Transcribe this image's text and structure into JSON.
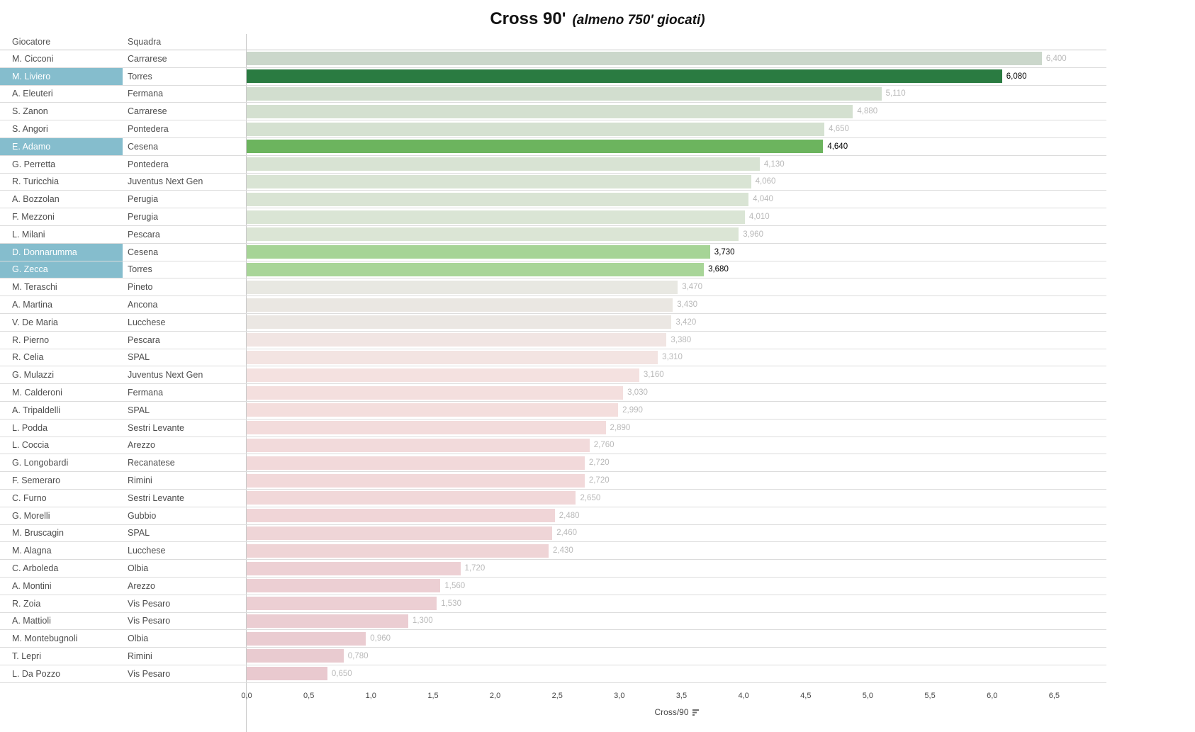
{
  "title": {
    "main": "Cross 90'",
    "subtitle": "(almeno 750' giocati)"
  },
  "columns": {
    "player": "Giocatore",
    "team": "Squadra"
  },
  "colors": {
    "highlight_row_blue": "#85bdcd",
    "highlight_text": "#ffffff",
    "value_label_gray": "#b9b9b9",
    "value_label_highlight": "#000000",
    "grid_line": "#dcdcdc",
    "axis_line": "#c9c9c9",
    "dark_green": "#2a7b41",
    "medium_green": "#6cb45e",
    "light_green": "#a6d496",
    "pale_pink": "#e9c9cf"
  },
  "chart_data": {
    "type": "bar",
    "orientation": "horizontal",
    "title": "Cross 90' (almeno 750' giocati)",
    "xlabel": "Cross/90",
    "xlim": [
      0,
      6.92
    ],
    "pane_max": 6.92,
    "grid": false,
    "ticks": [
      "0,0",
      "0,5",
      "1,0",
      "1,5",
      "2,0",
      "2,5",
      "3,0",
      "3,5",
      "4,0",
      "4,5",
      "5,0",
      "5,5",
      "6,0",
      "6,5"
    ],
    "rows": [
      {
        "player": "M. Cicconi",
        "team": "Carrarese",
        "value": 6.4,
        "value_label": "6,400",
        "color": "#cbd7cb",
        "highlighted": false
      },
      {
        "player": "M. Liviero",
        "team": "Torres",
        "value": 6.08,
        "value_label": "6,080",
        "color": "#2a7b41",
        "highlighted": true
      },
      {
        "player": "A. Eleuteri",
        "team": "Fermana",
        "value": 5.11,
        "value_label": "5,110",
        "color": "#d2decf",
        "highlighted": false
      },
      {
        "player": "S. Zanon",
        "team": "Carrarese",
        "value": 4.88,
        "value_label": "4,880",
        "color": "#d4e0d0",
        "highlighted": false
      },
      {
        "player": "S. Angori",
        "team": "Pontedera",
        "value": 4.65,
        "value_label": "4,650",
        "color": "#d5e1d1",
        "highlighted": false
      },
      {
        "player": "E. Adamo",
        "team": "Cesena",
        "value": 4.64,
        "value_label": "4,640",
        "color": "#6cb45e",
        "highlighted": true
      },
      {
        "player": "G. Perretta",
        "team": "Pontedera",
        "value": 4.13,
        "value_label": "4,130",
        "color": "#d8e3d3",
        "highlighted": false
      },
      {
        "player": "R. Turicchia",
        "team": "Juventus Next Gen",
        "value": 4.06,
        "value_label": "4,060",
        "color": "#d9e4d4",
        "highlighted": false
      },
      {
        "player": "A. Bozzolan",
        "team": "Perugia",
        "value": 4.04,
        "value_label": "4,040",
        "color": "#d9e4d4",
        "highlighted": false
      },
      {
        "player": "F. Mezzoni",
        "team": "Perugia",
        "value": 4.01,
        "value_label": "4,010",
        "color": "#dae5d5",
        "highlighted": false
      },
      {
        "player": "L. Milani",
        "team": "Pescara",
        "value": 3.96,
        "value_label": "3,960",
        "color": "#dbe5d5",
        "highlighted": false
      },
      {
        "player": "D. Donnarumma",
        "team": "Cesena",
        "value": 3.73,
        "value_label": "3,730",
        "color": "#a6d496",
        "highlighted": true
      },
      {
        "player": "G. Zecca",
        "team": "Torres",
        "value": 3.68,
        "value_label": "3,680",
        "color": "#a8d598",
        "highlighted": true
      },
      {
        "player": "M. Teraschi",
        "team": "Pineto",
        "value": 3.47,
        "value_label": "3,470",
        "color": "#e8e8e2",
        "highlighted": false
      },
      {
        "player": "A. Martina",
        "team": "Ancona",
        "value": 3.43,
        "value_label": "3,430",
        "color": "#eae7e2",
        "highlighted": false
      },
      {
        "player": "V. De Maria",
        "team": "Lucchese",
        "value": 3.42,
        "value_label": "3,420",
        "color": "#ebe7e3",
        "highlighted": false
      },
      {
        "player": "R. Pierno",
        "team": "Pescara",
        "value": 3.38,
        "value_label": "3,380",
        "color": "#f1e5e3",
        "highlighted": false
      },
      {
        "player": "R. Celia",
        "team": "SPAL",
        "value": 3.31,
        "value_label": "3,310",
        "color": "#f3e4e2",
        "highlighted": false
      },
      {
        "player": "G. Mulazzi",
        "team": "Juventus Next Gen",
        "value": 3.16,
        "value_label": "3,160",
        "color": "#f4e1e0",
        "highlighted": false
      },
      {
        "player": "M. Calderoni",
        "team": "Fermana",
        "value": 3.03,
        "value_label": "3,030",
        "color": "#f4dfde",
        "highlighted": false
      },
      {
        "player": "A. Tripaldelli",
        "team": "SPAL",
        "value": 2.99,
        "value_label": "2,990",
        "color": "#f4dedd",
        "highlighted": false
      },
      {
        "player": "L. Podda",
        "team": "Sestri Levante",
        "value": 2.89,
        "value_label": "2,890",
        "color": "#f3dcdc",
        "highlighted": false
      },
      {
        "player": "L. Coccia",
        "team": "Arezzo",
        "value": 2.76,
        "value_label": "2,760",
        "color": "#f2dadb",
        "highlighted": false
      },
      {
        "player": "G. Longobardi",
        "team": "Recanatese",
        "value": 2.72,
        "value_label": "2,720",
        "color": "#f2d9da",
        "highlighted": false
      },
      {
        "player": "F. Semeraro",
        "team": "Rimini",
        "value": 2.72,
        "value_label": "2,720",
        "color": "#f2d9da",
        "highlighted": false
      },
      {
        "player": "C. Furno",
        "team": "Sestri Levante",
        "value": 2.65,
        "value_label": "2,650",
        "color": "#f1d8d9",
        "highlighted": false
      },
      {
        "player": "G. Morelli",
        "team": "Gubbio",
        "value": 2.48,
        "value_label": "2,480",
        "color": "#f0d5d7",
        "highlighted": false
      },
      {
        "player": "M. Bruscagin",
        "team": "SPAL",
        "value": 2.46,
        "value_label": "2,460",
        "color": "#efd5d7",
        "highlighted": false
      },
      {
        "player": "M. Alagna",
        "team": "Lucchese",
        "value": 2.43,
        "value_label": "2,430",
        "color": "#efd4d6",
        "highlighted": false
      },
      {
        "player": "C. Arboleda",
        "team": "Olbia",
        "value": 1.72,
        "value_label": "1,720",
        "color": "#edd0d4",
        "highlighted": false
      },
      {
        "player": "A. Montini",
        "team": "Arezzo",
        "value": 1.56,
        "value_label": "1,560",
        "color": "#eccfd3",
        "highlighted": false
      },
      {
        "player": "R. Zoia",
        "team": "Vis Pesaro",
        "value": 1.53,
        "value_label": "1,530",
        "color": "#eccfd3",
        "highlighted": false
      },
      {
        "player": "A. Mattioli",
        "team": "Vis Pesaro",
        "value": 1.3,
        "value_label": "1,300",
        "color": "#ebcdd2",
        "highlighted": false
      },
      {
        "player": "M. Montebugnoli",
        "team": "Olbia",
        "value": 0.96,
        "value_label": "0,960",
        "color": "#eaccd1",
        "highlighted": false
      },
      {
        "player": "T. Lepri",
        "team": "Rimini",
        "value": 0.78,
        "value_label": "0,780",
        "color": "#e9cbd0",
        "highlighted": false
      },
      {
        "player": "L. Da Pozzo",
        "team": "Vis Pesaro",
        "value": 0.65,
        "value_label": "0,650",
        "color": "#e9c9cf",
        "highlighted": false
      }
    ]
  }
}
